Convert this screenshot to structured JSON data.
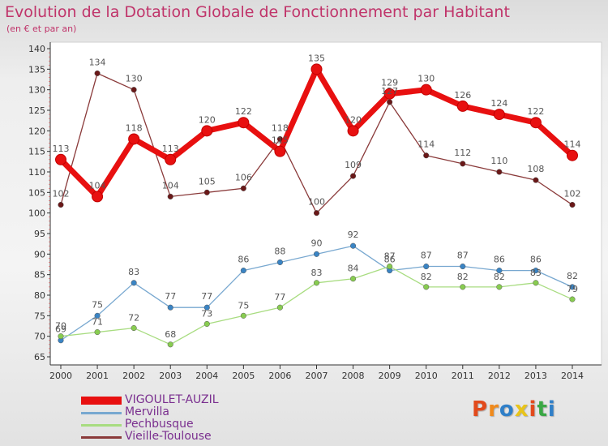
{
  "header": {
    "title": "Evolution de la Dotation Globale de Fonctionnement par Habitant",
    "subtitle": "(en € et par an)"
  },
  "logo": {
    "text": "Proxiti",
    "colors": [
      "#e24a1c",
      "#f08a1c",
      "#2f7fc8",
      "#e8c41a",
      "#e24a1c",
      "#3aa845",
      "#2f7fc8"
    ]
  },
  "chart_data": {
    "type": "line",
    "title": "Evolution de la Dotation Globale de Fonctionnement par Habitant",
    "subtitle": "(en € et par an)",
    "xlabel": "",
    "ylabel": "",
    "x": [
      "2000",
      "2001",
      "2002",
      "2003",
      "2004",
      "2005",
      "2006",
      "2007",
      "2008",
      "2009",
      "2010",
      "2011",
      "2012",
      "2013",
      "2014"
    ],
    "yticks": [
      65,
      70,
      75,
      80,
      85,
      90,
      95,
      100,
      105,
      110,
      115,
      120,
      125,
      130,
      135,
      140
    ],
    "ylim": [
      65,
      140
    ],
    "grid": false,
    "legend_position": "bottom-left",
    "series": [
      {
        "name": "VIGOULET-AUZIL",
        "color": "#e81010",
        "marker": "#e81010",
        "values": [
          113,
          104,
          118,
          113,
          120,
          122,
          115,
          135,
          120,
          129,
          130,
          126,
          124,
          122,
          114
        ],
        "labels": [
          "113",
          "104",
          "118",
          "113",
          "120",
          "122",
          "115",
          "135",
          "120",
          "129",
          "130",
          "126",
          "124",
          "122",
          "114"
        ]
      },
      {
        "name": "Mervilla",
        "color": "#78a8d0",
        "marker": "#3a84c4",
        "values": [
          69,
          75,
          83,
          77,
          77,
          86,
          88,
          90,
          92,
          86,
          87,
          87,
          86,
          86,
          82
        ],
        "labels": [
          "69",
          "75",
          "83",
          "77",
          "77",
          "86",
          "88",
          "90",
          "92",
          "86",
          "87",
          "87",
          "86",
          "86",
          "82"
        ]
      },
      {
        "name": "Pechbusque",
        "color": "#a8dc80",
        "marker": "#88cc50",
        "values": [
          70,
          71,
          72,
          68,
          73,
          75,
          77,
          83,
          84,
          87,
          82,
          82,
          82,
          83,
          79
        ],
        "labels": [
          "70",
          "71",
          "72",
          "68",
          "73",
          "75",
          "77",
          "83",
          "84",
          "87",
          "82",
          "82",
          "82",
          "83",
          "79"
        ]
      },
      {
        "name": "Vieille-Toulouse",
        "color": "#8a3a3a",
        "marker": "#6a1818",
        "values": [
          102,
          134,
          130,
          104,
          105,
          106,
          118,
          100,
          109,
          127,
          114,
          112,
          110,
          108,
          102
        ],
        "labels": [
          "102",
          "134",
          "130",
          "104",
          "105",
          "106",
          "118",
          "100",
          "109",
          "127",
          "114",
          "112",
          "110",
          "108",
          "102"
        ]
      }
    ]
  }
}
